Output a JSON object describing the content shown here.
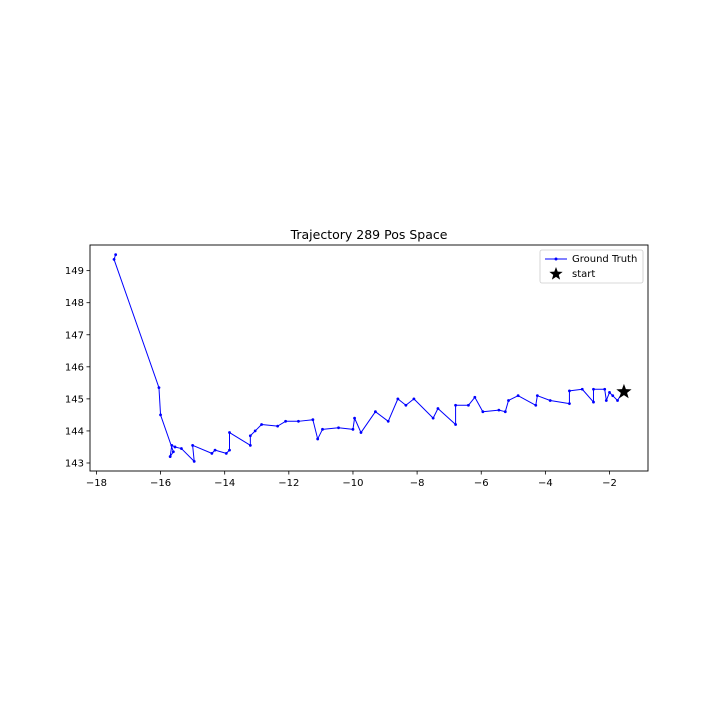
{
  "chart_data": {
    "type": "line",
    "title": "Trajectory 289 Pos Space",
    "xlabel": "",
    "ylabel": "",
    "xlim": [
      -18.2,
      -0.8
    ],
    "ylim": [
      142.75,
      149.8
    ],
    "xticks": [
      -18,
      -16,
      -14,
      -12,
      -10,
      -8,
      -6,
      -4,
      -2
    ],
    "yticks": [
      143,
      144,
      145,
      146,
      147,
      148,
      149
    ],
    "xtick_labels": [
      "−18",
      "−16",
      "−14",
      "−12",
      "−10",
      "−8",
      "−6",
      "−4",
      "−2"
    ],
    "ytick_labels": [
      "143",
      "144",
      "145",
      "146",
      "147",
      "148",
      "149"
    ],
    "grid": false,
    "legend_position": "top-right",
    "legend": [
      "Ground Truth",
      "start"
    ],
    "series": [
      {
        "name": "Ground Truth",
        "color": "#0000ff",
        "marker": "dot",
        "x": [
          -17.4,
          -17.45,
          -16.05,
          -16.0,
          -15.6,
          -15.7,
          -15.65,
          -15.55,
          -15.35,
          -14.95,
          -15.0,
          -14.4,
          -14.3,
          -13.95,
          -13.85,
          -13.85,
          -13.2,
          -13.2,
          -13.05,
          -12.85,
          -12.35,
          -12.1,
          -11.7,
          -11.25,
          -11.1,
          -10.95,
          -10.45,
          -10.0,
          -9.95,
          -9.75,
          -9.3,
          -8.9,
          -8.6,
          -8.35,
          -8.1,
          -7.5,
          -7.35,
          -6.8,
          -6.8,
          -6.4,
          -6.2,
          -5.95,
          -5.45,
          -5.25,
          -5.15,
          -4.85,
          -4.3,
          -4.25,
          -3.85,
          -3.25,
          -3.25,
          -2.85,
          -2.5,
          -2.5,
          -2.15,
          -2.1,
          -2.0,
          -1.9,
          -1.75,
          -1.6
        ],
        "y": [
          149.5,
          149.35,
          145.35,
          144.5,
          143.35,
          143.2,
          143.55,
          143.5,
          143.45,
          143.05,
          143.55,
          143.3,
          143.4,
          143.3,
          143.4,
          143.95,
          143.55,
          143.85,
          144.0,
          144.2,
          144.15,
          144.3,
          144.3,
          144.35,
          143.75,
          144.05,
          144.1,
          144.05,
          144.4,
          143.95,
          144.6,
          144.3,
          145.0,
          144.8,
          145.0,
          144.4,
          144.7,
          144.2,
          144.8,
          144.8,
          145.05,
          144.6,
          144.65,
          144.6,
          144.95,
          145.1,
          144.8,
          145.1,
          144.95,
          144.85,
          145.25,
          145.3,
          144.9,
          145.3,
          145.3,
          144.95,
          145.2,
          145.1,
          144.95,
          145.2
        ]
      },
      {
        "name": "start",
        "color": "#000000",
        "marker": "star",
        "x": [
          -1.55
        ],
        "y": [
          145.22
        ]
      }
    ]
  }
}
